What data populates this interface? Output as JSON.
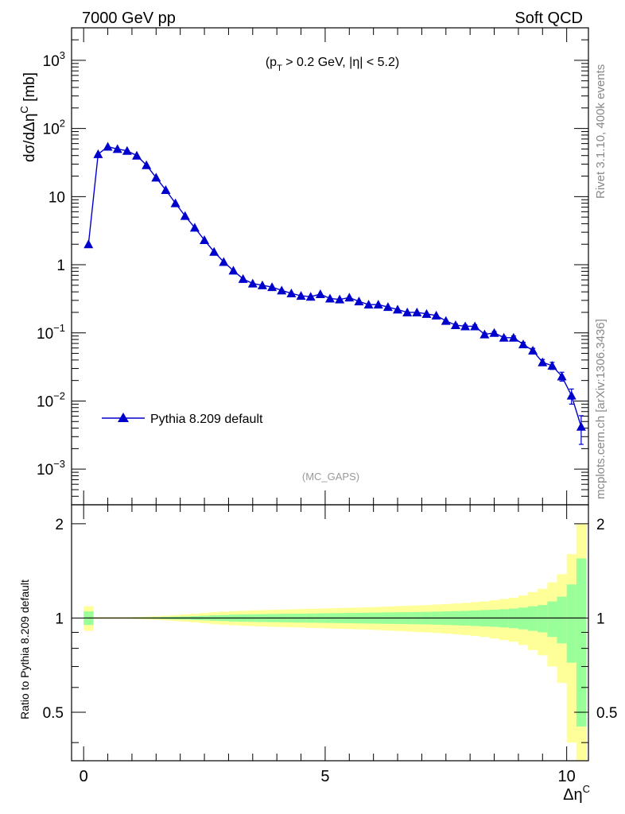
{
  "chart_data": {
    "type": "line",
    "title_left": "7000 GeV pp",
    "title_right": "Soft QCD",
    "annotation_main": "(p_T > 0.2 GeV, |η| < 5.2)",
    "analysis_tag": "(MC_GAPS)",
    "side_rivet": "Rivet 3.1.10,  400k events",
    "side_mcplots": "mcplots.cern.ch [arXiv:1306.3436]",
    "ylabel": "dσ/dΔη^C [mb]",
    "xlabel": "Δη^C",
    "ratio_ylabel": "Ratio to Pythia 8.209 default",
    "xlim": [
      -0.25,
      10.45
    ],
    "ylim": [
      0.0003,
      3000
    ],
    "yscale": "log",
    "ratio_ylim": [
      0.35,
      2.3
    ],
    "x_ticks": [
      "0",
      "5",
      "10"
    ],
    "y_ticks": [
      "10^-3",
      "10^-2",
      "10^-1",
      "1",
      "10",
      "10^2",
      "10^3"
    ],
    "ratio_ticks": [
      "0.5",
      "1",
      "2"
    ],
    "legend_position": "lower-left",
    "series": [
      {
        "name": "Pythia 8.209 default",
        "color": "#0000cc",
        "x": [
          0.1,
          0.3,
          0.5,
          0.7,
          0.9,
          1.1,
          1.3,
          1.5,
          1.7,
          1.9,
          2.1,
          2.3,
          2.5,
          2.7,
          2.9,
          3.1,
          3.3,
          3.5,
          3.7,
          3.9,
          4.1,
          4.3,
          4.5,
          4.7,
          4.9,
          5.1,
          5.3,
          5.5,
          5.7,
          5.9,
          6.1,
          6.3,
          6.5,
          6.7,
          6.9,
          7.1,
          7.3,
          7.5,
          7.7,
          7.9,
          8.1,
          8.3,
          8.5,
          8.7,
          8.9,
          9.1,
          9.3,
          9.5,
          9.7,
          9.9,
          10.1,
          10.3
        ],
        "y": [
          2.0,
          42,
          54,
          50,
          47,
          40,
          29,
          19,
          12.5,
          8,
          5.2,
          3.5,
          2.3,
          1.55,
          1.1,
          0.82,
          0.62,
          0.53,
          0.5,
          0.47,
          0.42,
          0.38,
          0.35,
          0.34,
          0.37,
          0.32,
          0.31,
          0.33,
          0.29,
          0.26,
          0.26,
          0.24,
          0.22,
          0.2,
          0.2,
          0.19,
          0.18,
          0.15,
          0.13,
          0.125,
          0.125,
          0.095,
          0.1,
          0.085,
          0.085,
          0.068,
          0.055,
          0.037,
          0.033,
          0.023,
          0.012,
          0.0042
        ],
        "err_frac": [
          0.02,
          0.01,
          0.01,
          0.01,
          0.01,
          0.01,
          0.01,
          0.01,
          0.01,
          0.01,
          0.01,
          0.01,
          0.01,
          0.015,
          0.015,
          0.02,
          0.02,
          0.02,
          0.02,
          0.02,
          0.025,
          0.025,
          0.025,
          0.025,
          0.025,
          0.03,
          0.03,
          0.03,
          0.03,
          0.03,
          0.035,
          0.035,
          0.035,
          0.035,
          0.04,
          0.04,
          0.04,
          0.04,
          0.045,
          0.045,
          0.05,
          0.05,
          0.05,
          0.05,
          0.06,
          0.07,
          0.08,
          0.1,
          0.12,
          0.15,
          0.25,
          0.45
        ]
      }
    ],
    "ratio_band": {
      "edges": [
        0.0,
        0.2,
        0.4,
        0.6,
        0.8,
        1.0,
        1.2,
        1.4,
        1.6,
        1.8,
        2.0,
        2.2,
        2.4,
        2.6,
        2.8,
        3.0,
        3.2,
        3.4,
        3.6,
        3.8,
        4.0,
        4.2,
        4.4,
        4.6,
        4.8,
        5.0,
        5.2,
        5.4,
        5.6,
        5.8,
        6.0,
        6.2,
        6.4,
        6.6,
        6.8,
        7.0,
        7.2,
        7.4,
        7.6,
        7.8,
        8.0,
        8.2,
        8.4,
        8.6,
        8.8,
        9.0,
        9.2,
        9.4,
        9.6,
        9.8,
        10.0,
        10.2,
        10.4
      ],
      "green_color": "#99ff99",
      "yellow_color": "#ffff99",
      "green_frac": [
        0.05,
        0.003,
        0.003,
        0.003,
        0.003,
        0.004,
        0.005,
        0.006,
        0.008,
        0.01,
        0.012,
        0.014,
        0.017,
        0.02,
        0.022,
        0.025,
        0.027,
        0.028,
        0.029,
        0.03,
        0.031,
        0.032,
        0.033,
        0.034,
        0.035,
        0.036,
        0.037,
        0.038,
        0.039,
        0.04,
        0.041,
        0.042,
        0.043,
        0.044,
        0.045,
        0.046,
        0.048,
        0.05,
        0.052,
        0.054,
        0.057,
        0.06,
        0.063,
        0.067,
        0.072,
        0.08,
        0.09,
        0.1,
        0.13,
        0.17,
        0.28,
        0.55
      ],
      "yellow_frac": [
        0.09,
        0.006,
        0.006,
        0.006,
        0.006,
        0.008,
        0.01,
        0.013,
        0.017,
        0.022,
        0.027,
        0.032,
        0.038,
        0.044,
        0.048,
        0.052,
        0.055,
        0.058,
        0.06,
        0.062,
        0.064,
        0.066,
        0.068,
        0.07,
        0.072,
        0.074,
        0.076,
        0.078,
        0.08,
        0.082,
        0.085,
        0.088,
        0.091,
        0.094,
        0.097,
        0.1,
        0.104,
        0.108,
        0.113,
        0.118,
        0.124,
        0.13,
        0.14,
        0.15,
        0.16,
        0.18,
        0.21,
        0.24,
        0.3,
        0.38,
        0.6,
        1.0
      ]
    }
  }
}
